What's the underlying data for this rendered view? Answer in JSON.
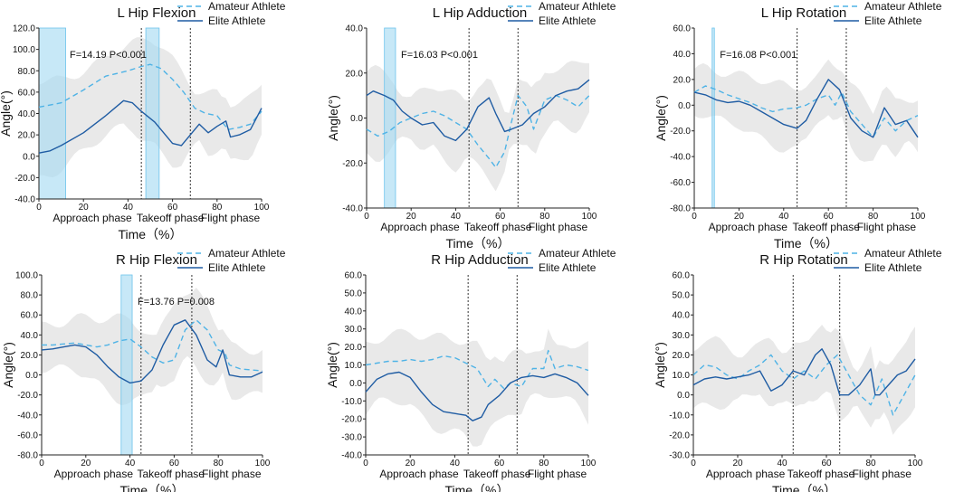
{
  "colors": {
    "line": "#1f5ca3",
    "dashed": "#4fb3e6",
    "band": "#a9dcf3",
    "shade": "#e9e9e9",
    "axis": "#222222"
  },
  "chart_data": [
    {
      "type": "line",
      "title": "L Hip Flexion",
      "xlabel": "Time（%）",
      "ylabel": "Angle(°)",
      "xlim": [
        0,
        100
      ],
      "ylim": [
        -40,
        120
      ],
      "yticks": [
        "-40.0",
        "-20.0",
        "0.0",
        "20.0",
        "40.0",
        "60.0",
        "80.0",
        "100.0",
        "120.0"
      ],
      "xticks": [
        "0",
        "20",
        "40",
        "60",
        "80",
        "100"
      ],
      "phase_lines": [
        46,
        68
      ],
      "phases": [
        "Approach phase",
        "Takeoff phase",
        "Flight phase"
      ],
      "highlights": [
        [
          0,
          12
        ],
        [
          48,
          54
        ]
      ],
      "annotation": "F=14.19 P<0.001",
      "legend": [
        "Amateur Athlete",
        "Elite Athlete"
      ],
      "series": [
        {
          "name": "Amateur Athlete",
          "style": "dashed",
          "x": [
            0,
            10,
            20,
            30,
            40,
            46,
            50,
            55,
            60,
            65,
            70,
            75,
            80,
            85,
            90,
            95,
            100
          ],
          "values": [
            46,
            50,
            62,
            75,
            80,
            84,
            86,
            82,
            72,
            60,
            45,
            40,
            38,
            25,
            27,
            30,
            42
          ]
        },
        {
          "name": "Elite Athlete",
          "style": "solid",
          "x": [
            0,
            5,
            10,
            20,
            30,
            38,
            42,
            46,
            52,
            56,
            60,
            64,
            68,
            72,
            76,
            80,
            84,
            86,
            90,
            95,
            100
          ],
          "values": [
            3,
            5,
            10,
            22,
            38,
            52,
            50,
            42,
            32,
            22,
            12,
            10,
            20,
            30,
            22,
            28,
            33,
            18,
            20,
            25,
            45
          ]
        }
      ]
    },
    {
      "type": "line",
      "title": "L Hip Adduction",
      "xlabel": "Time（%）",
      "ylabel": "Angle(°)",
      "xlim": [
        0,
        100
      ],
      "ylim": [
        -40,
        40
      ],
      "yticks": [
        "-40.0",
        "-20.0",
        "0.0",
        "20.0",
        "40.0"
      ],
      "xticks": [
        "0",
        "20",
        "40",
        "60",
        "80",
        "100"
      ],
      "phase_lines": [
        46,
        68
      ],
      "phases": [
        "Approach phase",
        "Takeoff phase",
        "Flight phase"
      ],
      "highlights": [
        [
          8,
          13
        ]
      ],
      "annotation": "F=16.03  P<0.001",
      "legend": [
        "Amateur Athlete",
        "Elite Athlete"
      ],
      "series": [
        {
          "name": "Amateur Athlete",
          "style": "dashed",
          "x": [
            0,
            5,
            10,
            15,
            20,
            25,
            30,
            35,
            40,
            45,
            50,
            55,
            58,
            62,
            65,
            68,
            72,
            75,
            80,
            85,
            90,
            95,
            100
          ],
          "values": [
            -5,
            -8,
            -6,
            -2,
            0,
            2,
            3,
            1,
            -2,
            -5,
            -12,
            -18,
            -22,
            -15,
            -2,
            10,
            5,
            -5,
            8,
            10,
            8,
            5,
            10
          ]
        },
        {
          "name": "Elite Athlete",
          "style": "solid",
          "x": [
            0,
            3,
            8,
            12,
            16,
            20,
            25,
            30,
            35,
            40,
            45,
            50,
            55,
            58,
            62,
            65,
            70,
            75,
            80,
            85,
            90,
            95,
            100
          ],
          "values": [
            10,
            12,
            10,
            8,
            3,
            0,
            -3,
            -2,
            -8,
            -10,
            -5,
            5,
            9,
            2,
            -6,
            -5,
            -3,
            2,
            5,
            10,
            12,
            13,
            17
          ]
        }
      ]
    },
    {
      "type": "line",
      "title": "L Hip Rotation",
      "xlabel": "Time（%）",
      "ylabel": "Angle(°)",
      "xlim": [
        0,
        100
      ],
      "ylim": [
        -80,
        60
      ],
      "yticks": [
        "-80.0",
        "-60.0",
        "-40.0",
        "-20.0",
        "0.0",
        "20.0",
        "40.0",
        "60.0"
      ],
      "xticks": [
        "0",
        "20",
        "40",
        "60",
        "80",
        "100"
      ],
      "phase_lines": [
        46,
        68
      ],
      "phases": [
        "Approach phase",
        "Takeoff phase",
        "Flight phase"
      ],
      "highlights": [
        [
          8,
          9
        ]
      ],
      "annotation": "F=16.08  P<0.001",
      "legend": [
        "Amateur Athlete",
        "Elite Athlete"
      ],
      "series": [
        {
          "name": "Amateur Athlete",
          "style": "dashed",
          "x": [
            0,
            5,
            10,
            15,
            20,
            25,
            30,
            35,
            40,
            46,
            50,
            55,
            60,
            63,
            66,
            70,
            75,
            80,
            85,
            90,
            95,
            100
          ],
          "values": [
            10,
            15,
            12,
            8,
            5,
            2,
            -2,
            -5,
            -3,
            -2,
            0,
            5,
            8,
            0,
            10,
            -5,
            -15,
            -25,
            -10,
            -20,
            -12,
            -8
          ]
        },
        {
          "name": "Elite Athlete",
          "style": "solid",
          "x": [
            0,
            5,
            10,
            15,
            20,
            25,
            30,
            35,
            40,
            46,
            50,
            55,
            60,
            65,
            70,
            75,
            80,
            85,
            90,
            95,
            100
          ],
          "values": [
            10,
            8,
            4,
            2,
            3,
            0,
            -5,
            -10,
            -15,
            -18,
            -12,
            5,
            20,
            12,
            -10,
            -20,
            -25,
            -2,
            -15,
            -12,
            -25
          ]
        }
      ]
    },
    {
      "type": "line",
      "title": "R Hip Flexion",
      "xlabel": "Time（%）",
      "ylabel": "Angle(°)",
      "xlim": [
        0,
        100
      ],
      "ylim": [
        -80,
        100
      ],
      "yticks": [
        "-80.0",
        "-60.0",
        "-40.0",
        "-20.0",
        "0.0",
        "20.0",
        "40.0",
        "60.0",
        "80.0",
        "100.0"
      ],
      "xticks": [
        "0",
        "20",
        "40",
        "60",
        "80",
        "100"
      ],
      "phase_lines": [
        45,
        68
      ],
      "phases": [
        "Approach phase",
        "Takeoff phase",
        "Flight phase"
      ],
      "highlights": [
        [
          36,
          41
        ]
      ],
      "annotation": "F=13.76 P=0.008",
      "legend": [
        "Amateur Athlete",
        "Elite Athlete"
      ],
      "series": [
        {
          "name": "Amateur Athlete",
          "style": "dashed",
          "x": [
            0,
            5,
            10,
            15,
            20,
            25,
            30,
            35,
            40,
            45,
            50,
            55,
            60,
            65,
            70,
            75,
            80,
            83,
            85,
            90,
            95,
            100
          ],
          "values": [
            30,
            30,
            31,
            32,
            30,
            28,
            30,
            34,
            36,
            28,
            18,
            12,
            15,
            45,
            55,
            45,
            25,
            22,
            10,
            6,
            5,
            4
          ]
        },
        {
          "name": "Elite Athlete",
          "style": "solid",
          "x": [
            0,
            5,
            10,
            15,
            20,
            25,
            30,
            35,
            40,
            45,
            50,
            55,
            60,
            65,
            70,
            75,
            79,
            82,
            85,
            90,
            95,
            100
          ],
          "values": [
            25,
            26,
            28,
            30,
            28,
            20,
            8,
            -2,
            -8,
            -6,
            5,
            30,
            50,
            55,
            40,
            15,
            8,
            25,
            0,
            -2,
            -2,
            3
          ]
        }
      ]
    },
    {
      "type": "line",
      "title": "R Hip Adduction",
      "xlabel": "Time（%）",
      "ylabel": "Angle(°)",
      "xlim": [
        0,
        100
      ],
      "ylim": [
        -40,
        60
      ],
      "yticks": [
        "-40.0",
        "-30.0",
        "-20.0",
        "-10.0",
        "0.0",
        "10.0",
        "20.0",
        "30.0",
        "40.0",
        "50.0",
        "60.0"
      ],
      "xticks": [
        "0",
        "20",
        "40",
        "60",
        "80",
        "100"
      ],
      "phase_lines": [
        46,
        68
      ],
      "phases": [
        "Approach phase",
        "Takeoff phase",
        "Flight phase"
      ],
      "highlights": [],
      "annotation": "",
      "legend": [
        "Amateur Athlete",
        "Elite Athlete"
      ],
      "series": [
        {
          "name": "Amateur Athlete",
          "style": "dashed",
          "x": [
            0,
            5,
            10,
            15,
            20,
            25,
            30,
            35,
            40,
            45,
            50,
            55,
            58,
            62,
            65,
            70,
            75,
            80,
            82,
            85,
            90,
            95,
            100
          ],
          "values": [
            10,
            11,
            12,
            12,
            13,
            12,
            13,
            15,
            14,
            11,
            8,
            -2,
            2,
            -3,
            0,
            -2,
            8,
            8,
            18,
            8,
            10,
            9,
            7
          ]
        },
        {
          "name": "Elite Athlete",
          "style": "solid",
          "x": [
            0,
            5,
            10,
            15,
            20,
            25,
            30,
            35,
            40,
            45,
            48,
            52,
            55,
            60,
            65,
            70,
            75,
            80,
            85,
            90,
            95,
            100
          ],
          "values": [
            -5,
            2,
            5,
            6,
            3,
            -5,
            -12,
            -16,
            -17,
            -18,
            -21,
            -19,
            -12,
            -7,
            0,
            3,
            4,
            3,
            5,
            3,
            0,
            -7
          ]
        }
      ]
    },
    {
      "type": "line",
      "title": "R Hip Rotation",
      "xlabel": "Time（%）",
      "ylabel": "Angle(°)",
      "xlim": [
        0,
        100
      ],
      "ylim": [
        -30,
        60
      ],
      "yticks": [
        "-30.0",
        "-20.0",
        "-10.0",
        "0.0",
        "10.0",
        "20.0",
        "30.0",
        "40.0",
        "50.0",
        "60.0"
      ],
      "xticks": [
        "0",
        "20",
        "40",
        "60",
        "80",
        "100"
      ],
      "phase_lines": [
        45,
        66
      ],
      "phases": [
        "Approach phase",
        "Takeoff phase",
        "Flight phase"
      ],
      "highlights": [],
      "annotation": "",
      "legend": [
        "Amateur Athlete",
        "Elite Athlete"
      ],
      "series": [
        {
          "name": "Amateur Athlete",
          "style": "dashed",
          "x": [
            0,
            5,
            10,
            15,
            20,
            25,
            30,
            35,
            40,
            45,
            50,
            55,
            60,
            65,
            70,
            75,
            80,
            85,
            90,
            95,
            100
          ],
          "values": [
            10,
            15,
            14,
            10,
            8,
            12,
            15,
            20,
            12,
            8,
            12,
            8,
            15,
            20,
            10,
            0,
            -5,
            8,
            -10,
            0,
            10
          ]
        },
        {
          "name": "Elite Athlete",
          "style": "solid",
          "x": [
            0,
            5,
            10,
            15,
            20,
            25,
            30,
            35,
            40,
            45,
            50,
            55,
            58,
            62,
            66,
            70,
            75,
            80,
            82,
            84,
            88,
            92,
            96,
            100
          ],
          "values": [
            5,
            8,
            9,
            8,
            9,
            10,
            12,
            2,
            5,
            12,
            10,
            20,
            23,
            15,
            0,
            0,
            5,
            13,
            0,
            0,
            5,
            10,
            12,
            18
          ]
        }
      ]
    }
  ]
}
